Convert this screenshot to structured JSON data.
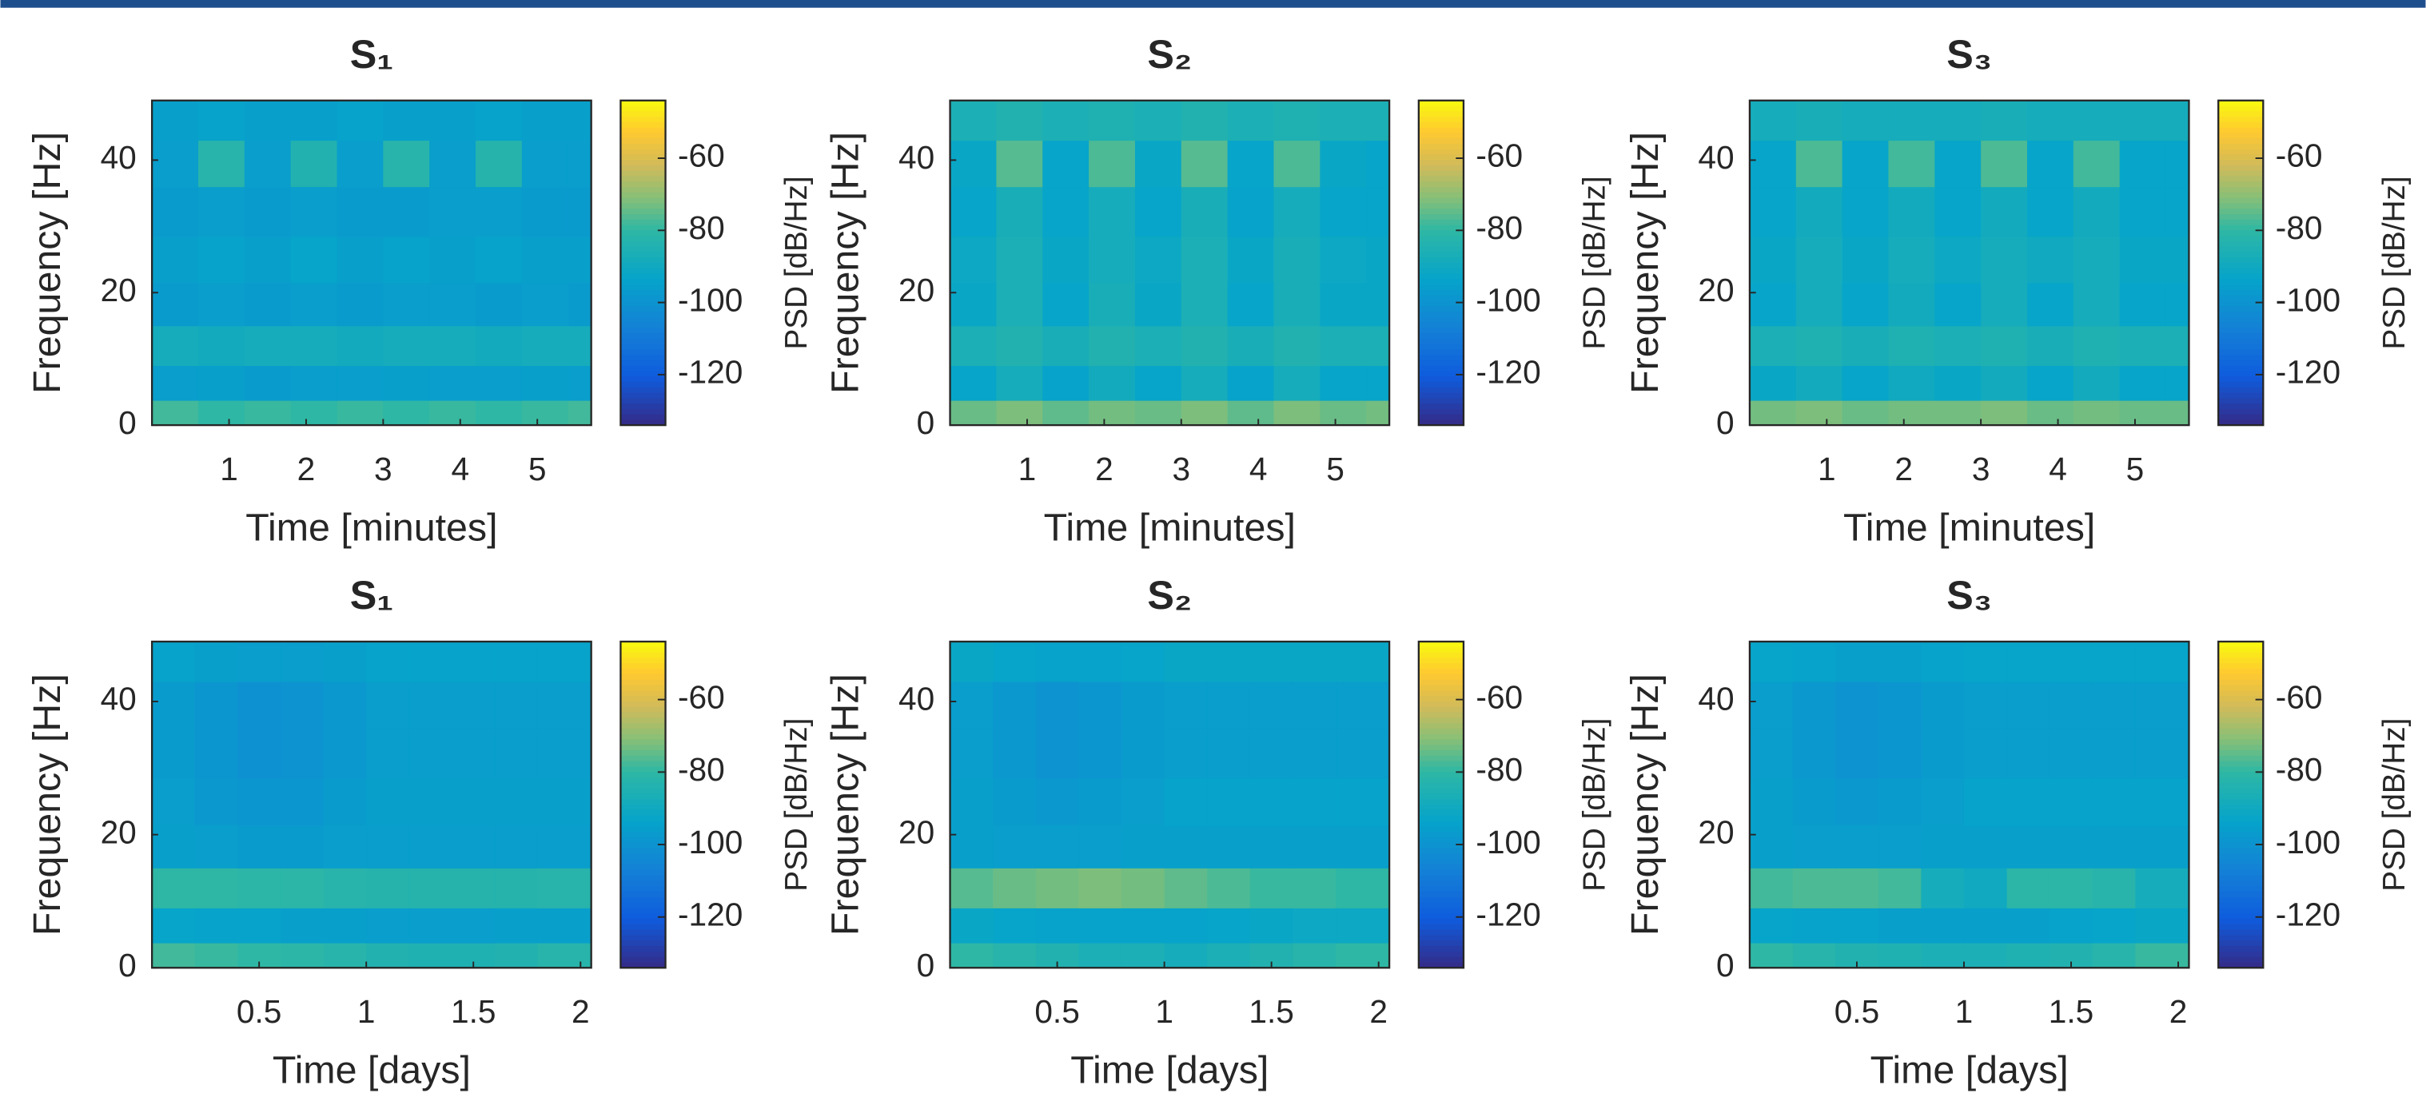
{
  "chart_data": [
    {
      "type": "heatmap",
      "title": "S₁",
      "xlabel": "Time [minutes]",
      "ylabel": "Frequency [Hz]",
      "colorbar_label": "PSD [dB/Hz]",
      "colormap": "parula",
      "x": [
        0.3,
        0.9,
        1.5,
        2.1,
        2.7,
        3.3,
        3.9,
        4.5,
        5.1,
        5.7
      ],
      "y": [
        1.5,
        6,
        12,
        18,
        25,
        32,
        40,
        46
      ],
      "values": [
        [
          -78,
          -80,
          -79,
          -80,
          -79,
          -80,
          -79,
          -80,
          -79,
          -78
        ],
        [
          -96,
          -95,
          -97,
          -96,
          -96,
          -95,
          -96,
          -96,
          -95,
          -96
        ],
        [
          -88,
          -89,
          -88,
          -88,
          -89,
          -88,
          -88,
          -89,
          -88,
          -88
        ],
        [
          -97,
          -96,
          -97,
          -96,
          -97,
          -96,
          -96,
          -97,
          -96,
          -97
        ],
        [
          -95,
          -94,
          -95,
          -93,
          -95,
          -94,
          -95,
          -94,
          -95,
          -95
        ],
        [
          -97,
          -96,
          -97,
          -96,
          -97,
          -97,
          -96,
          -96,
          -97,
          -97
        ],
        [
          -96,
          -82,
          -96,
          -84,
          -96,
          -82,
          -96,
          -83,
          -96,
          -96
        ],
        [
          -95,
          -94,
          -95,
          -95,
          -94,
          -95,
          -95,
          -94,
          -95,
          -95
        ]
      ],
      "xlim": [
        0,
        5.7
      ],
      "ylim": [
        0,
        49
      ],
      "xticks": [
        1,
        2,
        3,
        4,
        5
      ],
      "yticks": [
        0,
        20,
        40
      ],
      "clim": [
        -134,
        -44
      ],
      "cticks": [
        -120,
        -100,
        -80,
        -60
      ]
    },
    {
      "type": "heatmap",
      "title": "S₂",
      "xlabel": "Time [minutes]",
      "ylabel": "Frequency [Hz]",
      "colorbar_label": "PSD [dB/Hz]",
      "colormap": "parula",
      "x": [
        0.3,
        0.9,
        1.5,
        2.1,
        2.7,
        3.3,
        3.9,
        4.5,
        5.1,
        5.7
      ],
      "y": [
        1.5,
        6,
        12,
        18,
        25,
        32,
        40,
        46
      ],
      "values": [
        [
          -74,
          -72,
          -75,
          -73,
          -74,
          -72,
          -75,
          -72,
          -74,
          -73
        ],
        [
          -93,
          -88,
          -94,
          -89,
          -93,
          -88,
          -94,
          -88,
          -93,
          -93
        ],
        [
          -86,
          -84,
          -87,
          -84,
          -86,
          -84,
          -87,
          -84,
          -86,
          -86
        ],
        [
          -92,
          -86,
          -93,
          -87,
          -92,
          -86,
          -93,
          -87,
          -92,
          -92
        ],
        [
          -91,
          -86,
          -92,
          -88,
          -91,
          -86,
          -92,
          -87,
          -91,
          -92
        ],
        [
          -93,
          -87,
          -93,
          -88,
          -93,
          -87,
          -94,
          -88,
          -93,
          -93
        ],
        [
          -92,
          -76,
          -93,
          -77,
          -92,
          -76,
          -93,
          -77,
          -92,
          -93
        ],
        [
          -86,
          -84,
          -86,
          -85,
          -86,
          -84,
          -86,
          -85,
          -86,
          -86
        ]
      ],
      "xlim": [
        0,
        5.7
      ],
      "ylim": [
        0,
        49
      ],
      "xticks": [
        1,
        2,
        3,
        4,
        5
      ],
      "yticks": [
        0,
        20,
        40
      ],
      "clim": [
        -134,
        -44
      ],
      "cticks": [
        -120,
        -100,
        -80,
        -60
      ]
    },
    {
      "type": "heatmap",
      "title": "S₃",
      "xlabel": "Time [minutes]",
      "ylabel": "Frequency [Hz]",
      "colorbar_label": "PSD [dB/Hz]",
      "colormap": "parula",
      "x": [
        0.3,
        0.9,
        1.5,
        2.1,
        2.7,
        3.3,
        3.9,
        4.5,
        5.1,
        5.7
      ],
      "y": [
        1.5,
        6,
        12,
        18,
        25,
        32,
        40,
        46
      ],
      "values": [
        [
          -73,
          -72,
          -74,
          -73,
          -73,
          -72,
          -74,
          -73,
          -74,
          -74
        ],
        [
          -92,
          -89,
          -93,
          -90,
          -92,
          -89,
          -93,
          -89,
          -93,
          -93
        ],
        [
          -86,
          -85,
          -87,
          -85,
          -86,
          -85,
          -87,
          -85,
          -86,
          -86
        ],
        [
          -93,
          -88,
          -93,
          -89,
          -93,
          -88,
          -93,
          -88,
          -93,
          -93
        ],
        [
          -92,
          -88,
          -92,
          -88,
          -91,
          -88,
          -90,
          -88,
          -92,
          -92
        ],
        [
          -93,
          -89,
          -93,
          -89,
          -93,
          -89,
          -93,
          -89,
          -93,
          -93
        ],
        [
          -93,
          -77,
          -93,
          -78,
          -93,
          -77,
          -93,
          -78,
          -93,
          -93
        ],
        [
          -88,
          -87,
          -88,
          -88,
          -88,
          -87,
          -88,
          -88,
          -88,
          -88
        ]
      ],
      "xlim": [
        0,
        5.7
      ],
      "ylim": [
        0,
        49
      ],
      "xticks": [
        1,
        2,
        3,
        4,
        5
      ],
      "yticks": [
        0,
        20,
        40
      ],
      "clim": [
        -134,
        -44
      ],
      "cticks": [
        -120,
        -100,
        -80,
        -60
      ]
    },
    {
      "type": "heatmap",
      "title": "S₁",
      "xlabel": "Time [days]",
      "ylabel": "Frequency [Hz]",
      "colorbar_label": "PSD [dB/Hz]",
      "colormap": "parula",
      "x": [
        0.1,
        0.3,
        0.5,
        0.7,
        0.9,
        1.1,
        1.3,
        1.5,
        1.7,
        1.9
      ],
      "y": [
        1.5,
        6,
        12,
        18,
        25,
        32,
        40,
        46
      ],
      "values": [
        [
          -78,
          -79,
          -80,
          -81,
          -82,
          -84,
          -85,
          -85,
          -84,
          -82
        ],
        [
          -93,
          -94,
          -94,
          -95,
          -95,
          -96,
          -96,
          -96,
          -95,
          -95
        ],
        [
          -80,
          -80,
          -81,
          -81,
          -82,
          -83,
          -83,
          -83,
          -83,
          -82
        ],
        [
          -95,
          -96,
          -97,
          -97,
          -96,
          -96,
          -96,
          -96,
          -96,
          -96
        ],
        [
          -96,
          -98,
          -99,
          -99,
          -97,
          -95,
          -95,
          -95,
          -95,
          -95
        ],
        [
          -97,
          -99,
          -101,
          -100,
          -98,
          -96,
          -96,
          -96,
          -96,
          -96
        ],
        [
          -97,
          -99,
          -101,
          -100,
          -98,
          -96,
          -96,
          -96,
          -96,
          -96
        ],
        [
          -94,
          -95,
          -96,
          -96,
          -95,
          -94,
          -94,
          -94,
          -94,
          -94
        ]
      ],
      "xlim": [
        0,
        2.05
      ],
      "ylim": [
        0,
        49
      ],
      "xticks": [
        0.5,
        1,
        1.5,
        2
      ],
      "yticks": [
        0,
        20,
        40
      ],
      "clim": [
        -134,
        -44
      ],
      "cticks": [
        -120,
        -100,
        -80,
        -60
      ]
    },
    {
      "type": "heatmap",
      "title": "S₂",
      "xlabel": "Time [days]",
      "ylabel": "Frequency [Hz]",
      "colorbar_label": "PSD [dB/Hz]",
      "colormap": "parula",
      "x": [
        0.1,
        0.3,
        0.5,
        0.7,
        0.9,
        1.1,
        1.3,
        1.5,
        1.7,
        1.9
      ],
      "y": [
        1.5,
        6,
        12,
        18,
        25,
        32,
        40,
        46
      ],
      "values": [
        [
          -80,
          -82,
          -84,
          -86,
          -86,
          -88,
          -86,
          -84,
          -82,
          -80
        ],
        [
          -92,
          -93,
          -94,
          -94,
          -94,
          -94,
          -93,
          -92,
          -91,
          -91
        ],
        [
          -76,
          -74,
          -73,
          -72,
          -73,
          -75,
          -77,
          -79,
          -79,
          -80
        ],
        [
          -95,
          -96,
          -96,
          -96,
          -95,
          -95,
          -95,
          -95,
          -95,
          -95
        ],
        [
          -95,
          -97,
          -98,
          -97,
          -96,
          -94,
          -94,
          -94,
          -94,
          -94
        ],
        [
          -96,
          -98,
          -100,
          -99,
          -97,
          -96,
          -96,
          -96,
          -96,
          -96
        ],
        [
          -96,
          -98,
          -100,
          -99,
          -97,
          -96,
          -96,
          -96,
          -96,
          -96
        ],
        [
          -92,
          -93,
          -94,
          -94,
          -93,
          -92,
          -92,
          -92,
          -92,
          -92
        ]
      ],
      "xlim": [
        0,
        2.05
      ],
      "ylim": [
        0,
        49
      ],
      "xticks": [
        0.5,
        1,
        1.5,
        2
      ],
      "yticks": [
        0,
        20,
        40
      ],
      "clim": [
        -134,
        -44
      ],
      "cticks": [
        -120,
        -100,
        -80,
        -60
      ]
    },
    {
      "type": "heatmap",
      "title": "S₃",
      "xlabel": "Time [days]",
      "ylabel": "Frequency [Hz]",
      "colorbar_label": "PSD [dB/Hz]",
      "colormap": "parula",
      "x": [
        0.1,
        0.3,
        0.5,
        0.7,
        0.9,
        1.1,
        1.3,
        1.5,
        1.7,
        1.9
      ],
      "y": [
        1.5,
        6,
        12,
        18,
        25,
        32,
        40,
        46
      ],
      "values": [
        [
          -80,
          -82,
          -84,
          -85,
          -86,
          -86,
          -85,
          -84,
          -82,
          -79
        ],
        [
          -93,
          -94,
          -94,
          -95,
          -95,
          -95,
          -95,
          -94,
          -93,
          -92
        ],
        [
          -78,
          -77,
          -77,
          -78,
          -88,
          -90,
          -81,
          -81,
          -82,
          -88
        ],
        [
          -95,
          -96,
          -96,
          -96,
          -95,
          -95,
          -95,
          -95,
          -95,
          -95
        ],
        [
          -95,
          -97,
          -98,
          -97,
          -96,
          -94,
          -94,
          -94,
          -94,
          -94
        ],
        [
          -96,
          -98,
          -100,
          -99,
          -97,
          -96,
          -96,
          -96,
          -96,
          -96
        ],
        [
          -96,
          -98,
          -100,
          -99,
          -97,
          -96,
          -96,
          -96,
          -96,
          -96
        ],
        [
          -93,
          -94,
          -95,
          -95,
          -94,
          -93,
          -93,
          -93,
          -93,
          -93
        ]
      ],
      "xlim": [
        0,
        2.05
      ],
      "ylim": [
        0,
        49
      ],
      "xticks": [
        0.5,
        1,
        1.5,
        2
      ],
      "yticks": [
        0,
        20,
        40
      ],
      "clim": [
        -134,
        -44
      ],
      "cticks": [
        -120,
        -100,
        -80,
        -60
      ]
    }
  ]
}
